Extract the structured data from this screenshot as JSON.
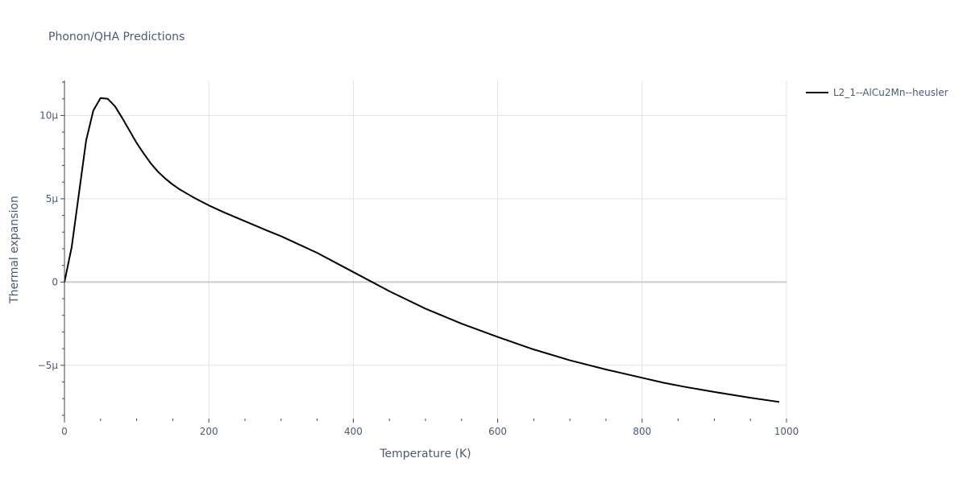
{
  "chart_data": {
    "type": "line",
    "title": "Phonon/QHA Predictions",
    "xlabel": "Temperature (K)",
    "ylabel": "Thermal expansion",
    "xlim": [
      0,
      1000
    ],
    "ylim": [
      -8.2e-06,
      1.21e-05
    ],
    "x_ticks": [
      0,
      200,
      400,
      600,
      800,
      1000
    ],
    "x_tick_labels": [
      "0",
      "200",
      "400",
      "600",
      "800",
      "1000"
    ],
    "y_ticks": [
      -5e-06,
      0,
      5e-06,
      1e-05
    ],
    "y_tick_labels": [
      "−5μ",
      "0",
      "5μ",
      "10μ"
    ],
    "grid": true,
    "legend_position": "top-right",
    "series": [
      {
        "name": "L2_1--AlCu2Mn--heusler",
        "color": "#000000",
        "x": [
          0,
          10,
          20,
          30,
          40,
          50,
          60,
          70,
          80,
          90,
          100,
          110,
          120,
          130,
          140,
          150,
          160,
          170,
          180,
          200,
          220,
          250,
          280,
          300,
          350,
          400,
          450,
          500,
          550,
          600,
          650,
          700,
          750,
          800,
          830,
          860,
          900,
          950,
          990
        ],
        "y": [
          0,
          2.1e-06,
          5.3e-06,
          8.5e-06,
          1.03e-05,
          1.105e-05,
          1.1e-05,
          1.055e-05,
          9.85e-06,
          9.1e-06,
          8.35e-06,
          7.7e-06,
          7.1e-06,
          6.6e-06,
          6.2e-06,
          5.85e-06,
          5.55e-06,
          5.3e-06,
          5.05e-06,
          4.6e-06,
          4.2e-06,
          3.65e-06,
          3.1e-06,
          2.75e-06,
          1.75e-06,
          6e-07,
          -5.5e-07,
          -1.6e-06,
          -2.5e-06,
          -3.3e-06,
          -4.05e-06,
          -4.7e-06,
          -5.25e-06,
          -5.75e-06,
          -6.05e-06,
          -6.3e-06,
          -6.6e-06,
          -6.95e-06,
          -7.2e-06
        ]
      }
    ]
  }
}
